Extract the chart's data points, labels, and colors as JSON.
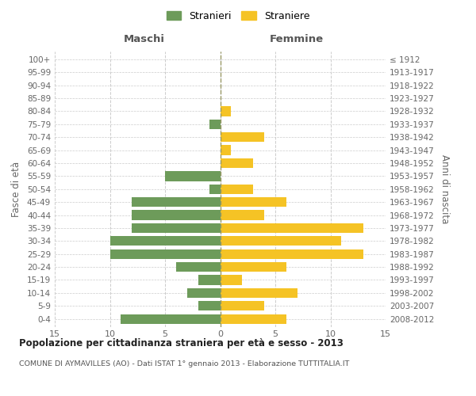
{
  "age_groups": [
    "0-4",
    "5-9",
    "10-14",
    "15-19",
    "20-24",
    "25-29",
    "30-34",
    "35-39",
    "40-44",
    "45-49",
    "50-54",
    "55-59",
    "60-64",
    "65-69",
    "70-74",
    "75-79",
    "80-84",
    "85-89",
    "90-94",
    "95-99",
    "100+"
  ],
  "birth_years": [
    "2008-2012",
    "2003-2007",
    "1998-2002",
    "1993-1997",
    "1988-1992",
    "1983-1987",
    "1978-1982",
    "1973-1977",
    "1968-1972",
    "1963-1967",
    "1958-1962",
    "1953-1957",
    "1948-1952",
    "1943-1947",
    "1938-1942",
    "1933-1937",
    "1928-1932",
    "1923-1927",
    "1918-1922",
    "1913-1917",
    "≤ 1912"
  ],
  "maschi": [
    9,
    2,
    3,
    2,
    4,
    10,
    10,
    8,
    8,
    8,
    1,
    5,
    0,
    0,
    0,
    1,
    0,
    0,
    0,
    0,
    0
  ],
  "femmine": [
    6,
    4,
    7,
    2,
    6,
    13,
    11,
    13,
    4,
    6,
    3,
    0,
    3,
    1,
    4,
    0,
    1,
    0,
    0,
    0,
    0
  ],
  "male_color": "#6d9b5a",
  "female_color": "#f5c325",
  "background_color": "#ffffff",
  "grid_color": "#cccccc",
  "title": "Popolazione per cittadinanza straniera per età e sesso - 2013",
  "subtitle": "COMUNE DI AYMAVILLES (AO) - Dati ISTAT 1° gennaio 2013 - Elaborazione TUTTITALIA.IT",
  "xlabel_left": "Maschi",
  "xlabel_right": "Femmine",
  "ylabel_left": "Fasce di età",
  "ylabel_right": "Anni di nascita",
  "legend_male": "Stranieri",
  "legend_female": "Straniere",
  "xlim": 15
}
